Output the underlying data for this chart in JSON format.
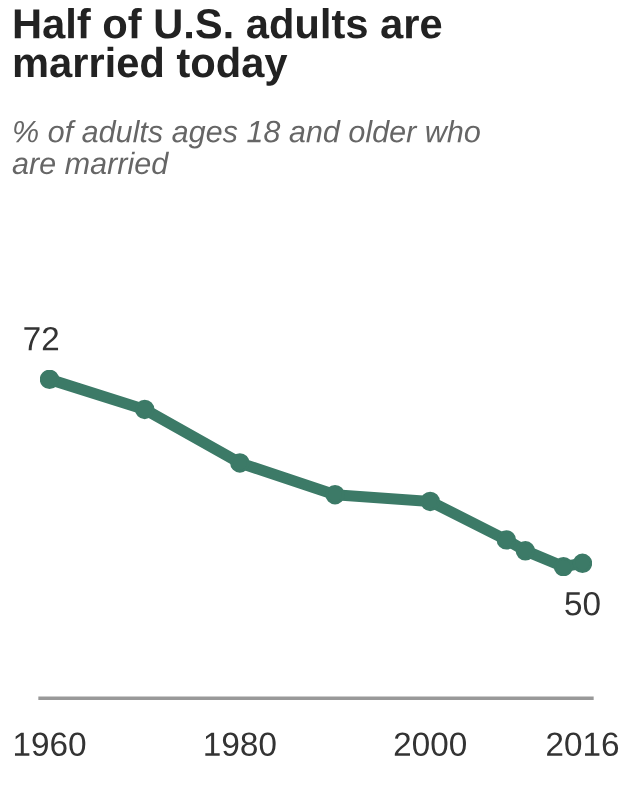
{
  "chart_data": {
    "type": "line",
    "title": "Half of U.S. adults are\nmarried today",
    "subtitle": "% of adults ages 18 and older who\nare married",
    "x": [
      1960,
      1970,
      1980,
      1990,
      2000,
      2008,
      2010,
      2014,
      2016
    ],
    "series": [
      {
        "color": "#3c7a67",
        "values": [
          72,
          68.4,
          62,
          58.2,
          57.4,
          52.8,
          51.5,
          49.6,
          50
        ],
        "value_labels": [
          "72",
          null,
          null,
          null,
          null,
          null,
          null,
          null,
          "50"
        ]
      }
    ],
    "xlim": [
      1959,
      2017
    ],
    "xticks": [
      1960,
      1980,
      2000,
      2016
    ],
    "marker": "circle",
    "line_style": "solid",
    "grid": false,
    "legend": false
  }
}
